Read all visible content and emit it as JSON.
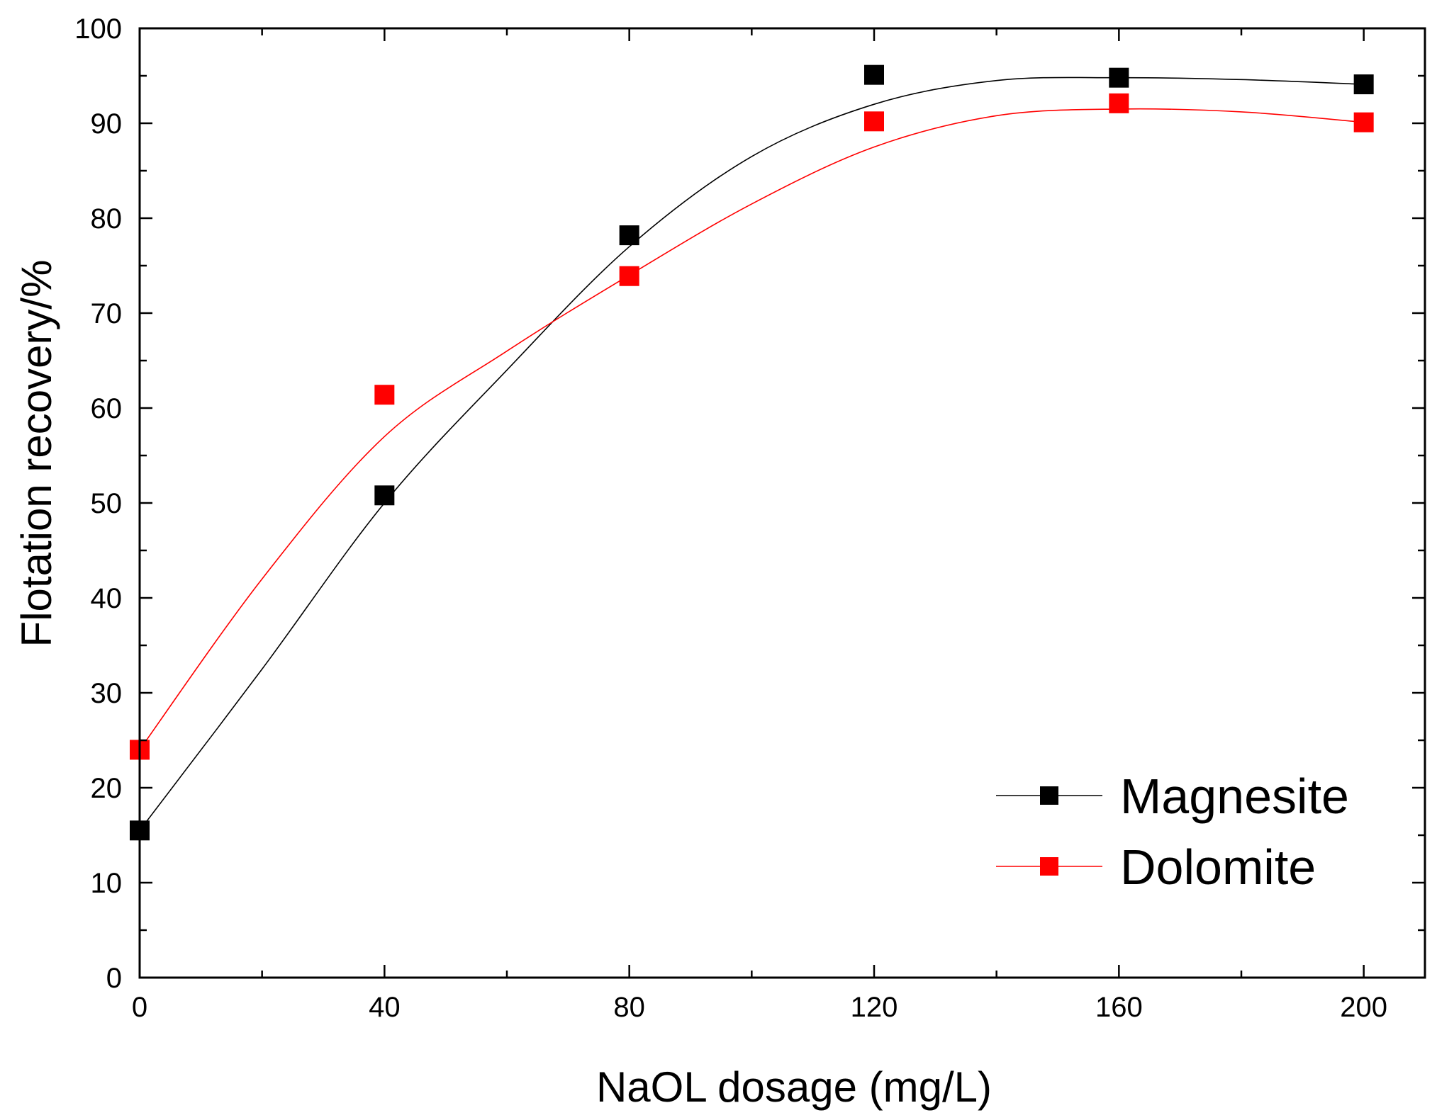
{
  "chart_data": {
    "type": "scatter",
    "title": "",
    "xlabel": "NaOL dosage (mg/L)",
    "ylabel": "Flotation recovery/%",
    "xlim": [
      0,
      210
    ],
    "ylim": [
      0,
      100
    ],
    "x_ticks": [
      0,
      40,
      80,
      120,
      160,
      200
    ],
    "x_minor_ticks": [
      20,
      60,
      100,
      140,
      180
    ],
    "y_ticks": [
      0,
      10,
      20,
      30,
      40,
      50,
      60,
      70,
      80,
      90,
      100
    ],
    "y_minor_ticks": [
      5,
      15,
      25,
      35,
      45,
      55,
      65,
      75,
      85,
      95
    ],
    "grid": false,
    "legend_position": "bottom-right",
    "series": [
      {
        "name": "Magnesite",
        "color": "#000000",
        "marker": "square",
        "x": [
          0,
          40,
          80,
          120,
          160,
          200
        ],
        "y": [
          15.5,
          50.8,
          78.2,
          95.1,
          94.8,
          94.1
        ],
        "fit_curve": {
          "x": [
            0,
            20,
            40,
            60,
            80,
            100,
            120,
            140,
            160,
            180,
            200
          ],
          "y": [
            15.5,
            32.5,
            50.0,
            64.0,
            77.0,
            86.5,
            92.0,
            94.5,
            94.8,
            94.6,
            94.1
          ]
        }
      },
      {
        "name": "Dolomite",
        "color": "#ff0000",
        "marker": "square",
        "x": [
          0,
          40,
          80,
          120,
          160,
          200
        ],
        "y": [
          24.0,
          61.4,
          73.9,
          90.2,
          92.1,
          90.1
        ],
        "fit_curve": {
          "x": [
            0,
            20,
            40,
            60,
            80,
            100,
            120,
            140,
            160,
            180,
            200
          ],
          "y": [
            24.0,
            42.0,
            57.0,
            66.0,
            74.0,
            81.5,
            87.5,
            90.8,
            91.5,
            91.2,
            90.1
          ]
        }
      }
    ]
  }
}
